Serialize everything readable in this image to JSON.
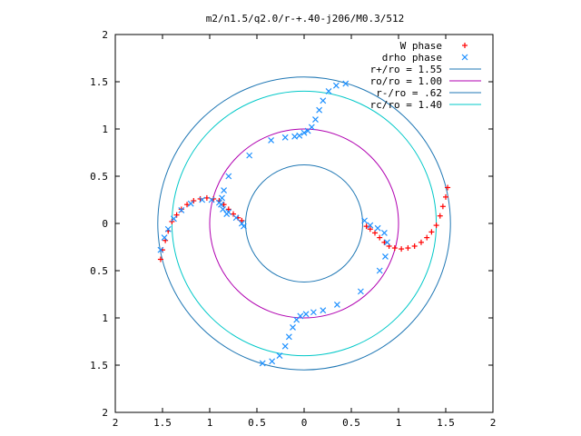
{
  "chart_data": {
    "type": "scatter",
    "title": "m2/n1.5/q2.0/r-+.40-j206/M0.3/512",
    "xlabel": "",
    "ylabel": "",
    "xlim": [
      -2,
      2
    ],
    "ylim": [
      -2,
      2
    ],
    "x_ticks": [
      -2,
      -1.5,
      -1,
      -0.5,
      0,
      0.5,
      1,
      1.5,
      2
    ],
    "y_ticks": [
      -2,
      -1.5,
      -1,
      -0.5,
      0,
      0.5,
      1,
      1.5,
      2
    ],
    "x_tick_labels": [
      "2",
      "1.5",
      "1",
      "0.5",
      "0",
      "0.5",
      "1",
      "1.5",
      "2"
    ],
    "y_tick_labels": [
      "2",
      "1.5",
      "1",
      "0.5",
      "0",
      "0.5",
      "1",
      "1.5",
      "2"
    ],
    "grid": false,
    "legend_position": "top-right",
    "legend": [
      {
        "label": "W phase",
        "color": "#ff0000",
        "marker": "plus"
      },
      {
        "label": "drho phase",
        "color": "#1e90ff",
        "marker": "cross"
      },
      {
        "label": "r+/ro = 1.55",
        "color": "#1f77b4",
        "marker": "line"
      },
      {
        "label": "ro/ro = 1.00",
        "color": "#b000b0",
        "marker": "line"
      },
      {
        "label": "r-/ro = .62",
        "color": "#1f77b4",
        "marker": "line"
      },
      {
        "label": "rc/ro = 1.40",
        "color": "#00c8c8",
        "marker": "line"
      }
    ],
    "circles": [
      {
        "radius": 1.55,
        "color": "#1f77b4"
      },
      {
        "radius": 1.0,
        "color": "#b000b0"
      },
      {
        "radius": 0.62,
        "color": "#1f77b4"
      },
      {
        "radius": 1.4,
        "color": "#00c8c8"
      }
    ],
    "series": [
      {
        "name": "W phase",
        "color": "#ff0000",
        "marker": "plus",
        "points": [
          [
            -1.52,
            -0.38
          ],
          [
            -1.5,
            -0.28
          ],
          [
            -1.47,
            -0.18
          ],
          [
            -1.44,
            -0.08
          ],
          [
            -1.4,
            0.02
          ],
          [
            -1.35,
            0.09
          ],
          [
            -1.3,
            0.15
          ],
          [
            -1.24,
            0.2
          ],
          [
            -1.17,
            0.24
          ],
          [
            -1.1,
            0.26
          ],
          [
            -1.03,
            0.27
          ],
          [
            -0.96,
            0.26
          ],
          [
            -0.9,
            0.24
          ],
          [
            -0.85,
            0.2
          ],
          [
            -0.8,
            0.15
          ],
          [
            -0.75,
            0.1
          ],
          [
            -0.7,
            0.06
          ],
          [
            -0.66,
            0.03
          ],
          [
            0.66,
            -0.03
          ],
          [
            0.7,
            -0.06
          ],
          [
            0.75,
            -0.1
          ],
          [
            0.8,
            -0.15
          ],
          [
            0.85,
            -0.2
          ],
          [
            0.9,
            -0.24
          ],
          [
            0.96,
            -0.26
          ],
          [
            1.03,
            -0.27
          ],
          [
            1.1,
            -0.26
          ],
          [
            1.17,
            -0.24
          ],
          [
            1.24,
            -0.2
          ],
          [
            1.3,
            -0.15
          ],
          [
            1.35,
            -0.09
          ],
          [
            1.4,
            -0.02
          ],
          [
            1.44,
            0.08
          ],
          [
            1.47,
            0.18
          ],
          [
            1.5,
            0.28
          ],
          [
            1.52,
            0.38
          ]
        ]
      },
      {
        "name": "drho phase",
        "color": "#1e90ff",
        "marker": "cross",
        "points": [
          [
            -1.52,
            -0.28
          ],
          [
            -1.48,
            -0.15
          ],
          [
            -1.44,
            -0.06
          ],
          [
            -1.38,
            0.05
          ],
          [
            -1.3,
            0.14
          ],
          [
            -1.2,
            0.21
          ],
          [
            -1.08,
            0.25
          ],
          [
            -0.98,
            0.25
          ],
          [
            -0.9,
            0.22
          ],
          [
            -0.8,
            0.12
          ],
          [
            -0.72,
            0.06
          ],
          [
            -0.66,
            0.0
          ],
          [
            -0.64,
            -0.03
          ],
          [
            -0.82,
            0.1
          ],
          [
            -0.86,
            0.15
          ],
          [
            -0.88,
            0.2
          ],
          [
            -0.87,
            0.27
          ],
          [
            -0.85,
            0.35
          ],
          [
            -0.8,
            0.5
          ],
          [
            -0.58,
            0.72
          ],
          [
            -0.35,
            0.88
          ],
          [
            -0.2,
            0.91
          ],
          [
            -0.1,
            0.92
          ],
          [
            -0.05,
            0.93
          ],
          [
            0.0,
            0.96
          ],
          [
            0.04,
            0.98
          ],
          [
            0.08,
            1.02
          ],
          [
            0.12,
            1.1
          ],
          [
            0.16,
            1.2
          ],
          [
            0.2,
            1.3
          ],
          [
            0.26,
            1.4
          ],
          [
            0.34,
            1.46
          ],
          [
            0.44,
            1.48
          ],
          [
            0.64,
            0.03
          ],
          [
            0.7,
            -0.02
          ],
          [
            0.78,
            -0.05
          ],
          [
            0.85,
            -0.1
          ],
          [
            0.88,
            -0.2
          ],
          [
            0.86,
            -0.35
          ],
          [
            0.8,
            -0.5
          ],
          [
            0.6,
            -0.72
          ],
          [
            0.35,
            -0.86
          ],
          [
            0.2,
            -0.92
          ],
          [
            0.1,
            -0.94
          ],
          [
            0.02,
            -0.96
          ],
          [
            -0.04,
            -0.98
          ],
          [
            -0.08,
            -1.02
          ],
          [
            -0.12,
            -1.1
          ],
          [
            -0.16,
            -1.2
          ],
          [
            -0.2,
            -1.3
          ],
          [
            -0.26,
            -1.4
          ],
          [
            -0.34,
            -1.46
          ],
          [
            -0.44,
            -1.48
          ]
        ]
      }
    ]
  }
}
